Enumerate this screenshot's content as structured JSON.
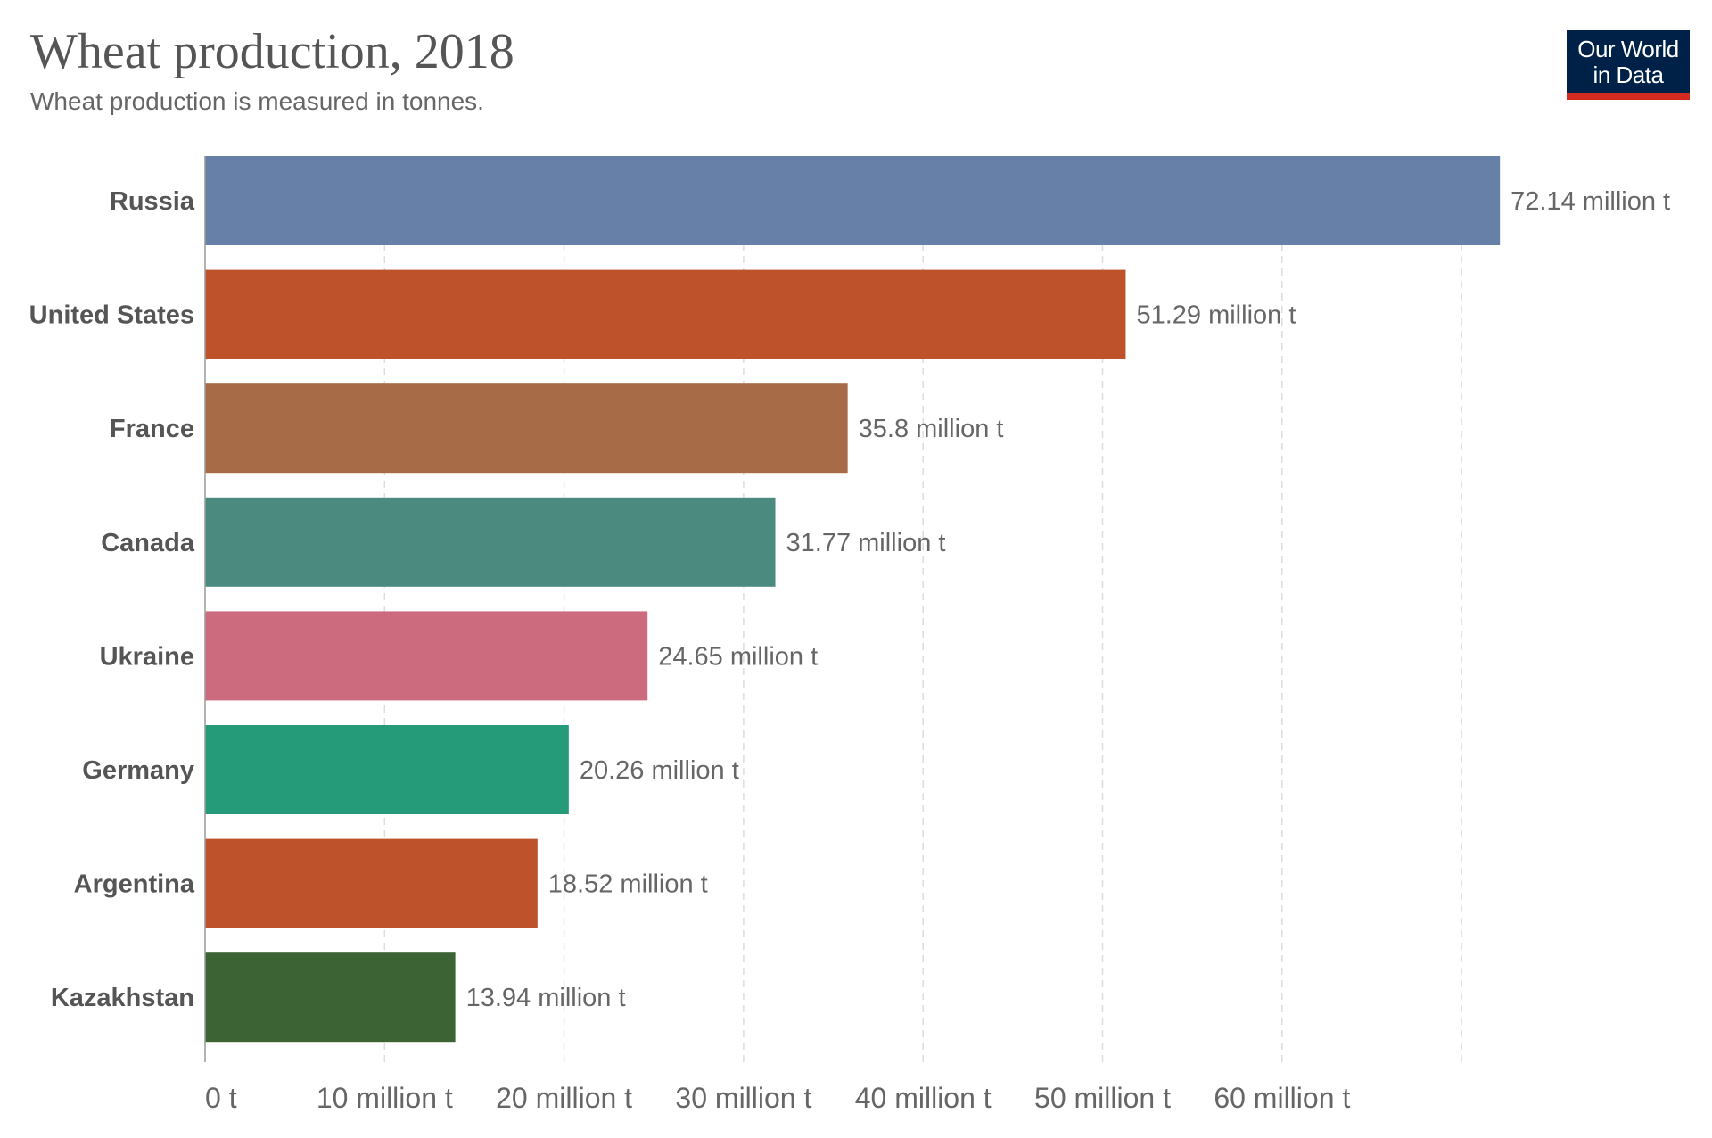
{
  "title": "Wheat production, 2018",
  "subtitle": "Wheat production is measured in tonnes.",
  "logo": {
    "line1": "Our World",
    "line2": "in Data",
    "bg_color": "#002147",
    "accent_color": "#d42b21"
  },
  "chart_data": {
    "type": "bar",
    "orientation": "horizontal",
    "title": "Wheat production, 2018",
    "subtitle": "Wheat production is measured in tonnes.",
    "unit": "million t",
    "categories": [
      "Russia",
      "United States",
      "France",
      "Canada",
      "Ukraine",
      "Germany",
      "Argentina",
      "Kazakhstan"
    ],
    "values": [
      72.14,
      51.29,
      35.8,
      31.77,
      24.65,
      20.26,
      18.52,
      13.94
    ],
    "value_labels": [
      "72.14 million t",
      "51.29 million t",
      "35.8 million t",
      "31.77 million t",
      "24.65 million t",
      "20.26 million t",
      "18.52 million t",
      "13.94 million t"
    ],
    "colors": [
      "#6780a8",
      "#be532b",
      "#a86b47",
      "#4b8a7e",
      "#cd6b7e",
      "#259b7a",
      "#be532b",
      "#3c6334"
    ],
    "xlim": [
      0,
      72.14
    ],
    "gridlines": [
      0,
      10,
      20,
      30,
      40,
      50,
      60,
      70
    ],
    "x_ticks": [
      0,
      10,
      20,
      30,
      40,
      50,
      60
    ],
    "x_tick_labels": [
      "0 t",
      "10 million t",
      "20 million t",
      "30 million t",
      "40 million t",
      "50 million t",
      "60 million t"
    ],
    "grid": "vertical dashed",
    "legend": "none"
  }
}
